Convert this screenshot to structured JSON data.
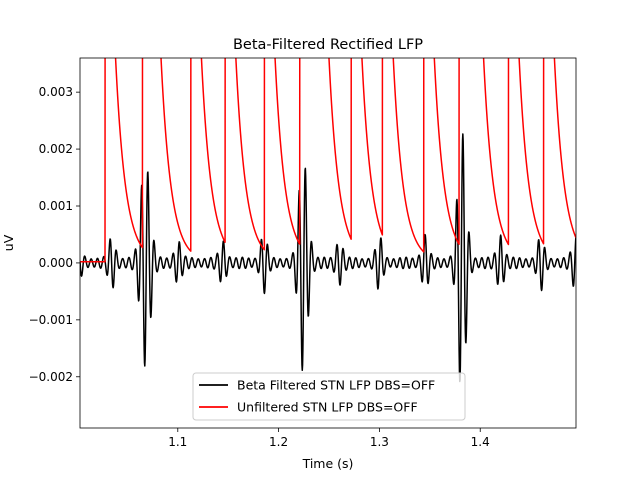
{
  "chart_data": {
    "type": "line",
    "title": "Beta-Filtered Rectified LFP",
    "xlabel": "Time (s)",
    "ylabel": "uV",
    "xlim": [
      1.003,
      1.495
    ],
    "ylim": [
      -0.0029,
      0.0036
    ],
    "x_ticks": [
      {
        "value": 1.1,
        "label": "1.1"
      },
      {
        "value": 1.2,
        "label": "1.2"
      },
      {
        "value": 1.3,
        "label": "1.3"
      },
      {
        "value": 1.4,
        "label": "1.4"
      }
    ],
    "y_ticks": [
      {
        "value": -0.002,
        "label": "−0.002"
      },
      {
        "value": -0.001,
        "label": "−0.001"
      },
      {
        "value": 0.0,
        "label": "0.000"
      },
      {
        "value": 0.001,
        "label": "0.001"
      },
      {
        "value": 0.002,
        "label": "0.002"
      },
      {
        "value": 0.003,
        "label": "0.003"
      }
    ],
    "grid": false,
    "legend_position": "lower center",
    "colors": {
      "beta": "#000000",
      "unfiltered": "#ff0000"
    },
    "series": [
      {
        "name": "Beta Filtered STN LFP DBS=OFF",
        "color": "#000000",
        "baseline_oscillation_amplitude": 0.0001,
        "oscillation_frequency_hz": 160,
        "bursts": [
          {
            "t": 1.002,
            "amplitude": 0.0002
          },
          {
            "t": 1.035,
            "amplitude": 0.00045
          },
          {
            "t": 1.068,
            "amplitude": 0.0025
          },
          {
            "t": 1.1,
            "amplitude": 0.0004
          },
          {
            "t": 1.145,
            "amplitude": 0.0004
          },
          {
            "t": 1.185,
            "amplitude": 0.0005
          },
          {
            "t": 1.225,
            "amplitude": 0.0022
          },
          {
            "t": 1.26,
            "amplitude": 0.00045
          },
          {
            "t": 1.3,
            "amplitude": 0.0004
          },
          {
            "t": 1.345,
            "amplitude": 0.0005
          },
          {
            "t": 1.382,
            "amplitude": 0.0023
          },
          {
            "t": 1.42,
            "amplitude": 0.0006
          },
          {
            "t": 1.46,
            "amplitude": 0.0004
          },
          {
            "t": 1.495,
            "amplitude": 0.0005
          }
        ]
      },
      {
        "name": "Unfiltered STN LFP DBS=OFF",
        "color": "#ff0000",
        "baseline": 2e-05,
        "spike_times": [
          1.028,
          1.065,
          1.067,
          1.113,
          1.147,
          1.186,
          1.221,
          1.224,
          1.226,
          1.23,
          1.272,
          1.303,
          1.344,
          1.379,
          1.381,
          1.385,
          1.428,
          1.463
        ],
        "spike_peak": 0.01,
        "decay_tau_s": 0.01
      }
    ]
  }
}
